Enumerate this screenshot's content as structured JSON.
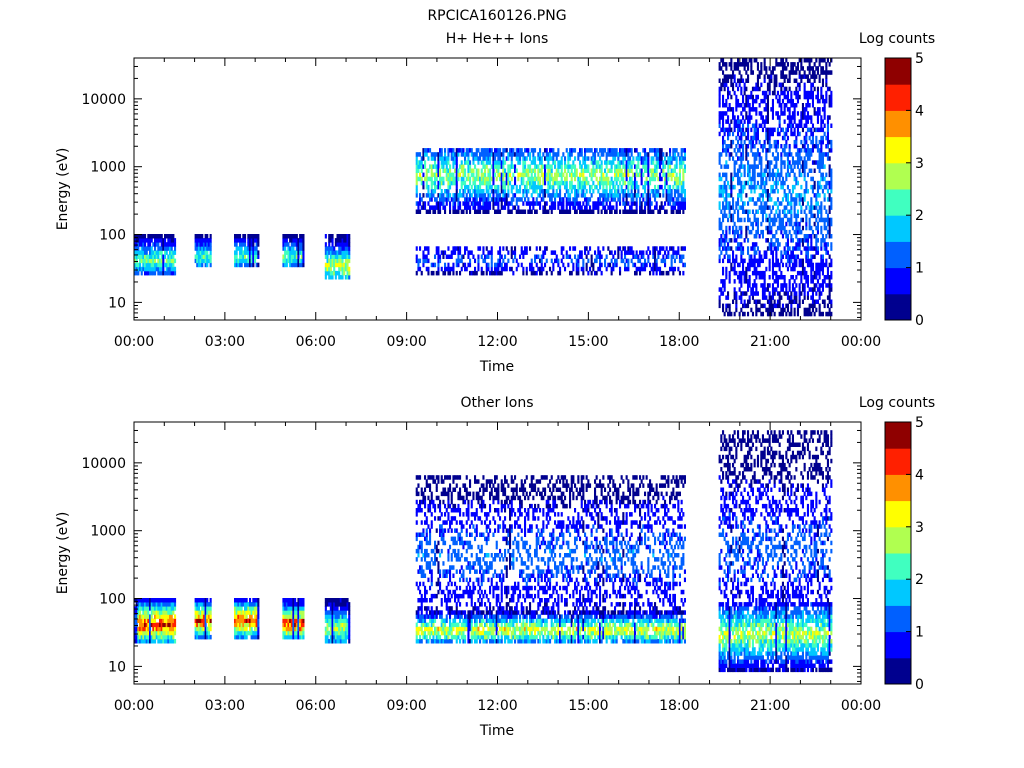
{
  "page_title": "RPCICA160126.PNG",
  "colors": {
    "colormap": [
      "#00008f",
      "#0000ff",
      "#0060ff",
      "#00c8ff",
      "#40ffc0",
      "#b0ff50",
      "#ffff00",
      "#ff9000",
      "#ff2000",
      "#8f0000"
    ],
    "axis": "#000000"
  },
  "chart_data": [
    {
      "type": "heatmap",
      "title": "H+ He++ Ions",
      "xlabel": "Time",
      "ylabel": "Energy (eV)",
      "xlim_hours": [
        0,
        24
      ],
      "x_ticks": [
        "00:00",
        "03:00",
        "06:00",
        "09:00",
        "12:00",
        "15:00",
        "18:00",
        "21:00",
        "00:00"
      ],
      "y_scale": "log",
      "ylim": [
        5.5,
        40000
      ],
      "y_ticks": [
        "10",
        "100",
        "1000",
        "10000"
      ],
      "colorbar": {
        "label": "Log counts",
        "range": [
          0,
          5
        ],
        "ticks": [
          "0",
          "1",
          "2",
          "3",
          "4",
          "5"
        ]
      },
      "regions": [
        {
          "t0": 0.0,
          "t1": 1.35,
          "e_lo": 25,
          "e_hi": 95,
          "peak_energy": 40,
          "peak_level": 2.6,
          "sparse": 0.1
        },
        {
          "t0": 2.0,
          "t1": 2.5,
          "e_lo": 30,
          "e_hi": 95,
          "peak_energy": 45,
          "peak_level": 2.4,
          "sparse": 0.1
        },
        {
          "t0": 3.3,
          "t1": 4.1,
          "e_lo": 30,
          "e_hi": 95,
          "peak_energy": 45,
          "peak_level": 2.5,
          "sparse": 0.1
        },
        {
          "t0": 4.9,
          "t1": 5.6,
          "e_lo": 30,
          "e_hi": 95,
          "peak_energy": 45,
          "peak_level": 2.5,
          "sparse": 0.1
        },
        {
          "t0": 6.3,
          "t1": 7.1,
          "e_lo": 22,
          "e_hi": 95,
          "peak_energy": 32,
          "peak_level": 3.2,
          "sparse": 0.1
        },
        {
          "t0": 9.3,
          "t1": 18.2,
          "e_lo": 180,
          "e_hi": 1800,
          "peak_energy": 700,
          "peak_level": 2.8,
          "sparse": 0.35
        },
        {
          "t0": 9.3,
          "t1": 18.2,
          "e_lo": 25,
          "e_hi": 60,
          "peak_energy": 40,
          "peak_level": 1.3,
          "sparse": 0.55
        },
        {
          "t0": 19.3,
          "t1": 23.0,
          "e_lo": 6,
          "e_hi": 38000,
          "peak_energy": 400,
          "peak_level": 1.6,
          "sparse": 0.5
        }
      ]
    },
    {
      "type": "heatmap",
      "title": "Other Ions",
      "xlabel": "Time",
      "ylabel": "Energy (eV)",
      "xlim_hours": [
        0,
        24
      ],
      "x_ticks": [
        "00:00",
        "03:00",
        "06:00",
        "09:00",
        "12:00",
        "15:00",
        "18:00",
        "21:00",
        "00:00"
      ],
      "y_scale": "log",
      "ylim": [
        5.5,
        40000
      ],
      "y_ticks": [
        "10",
        "100",
        "1000",
        "10000"
      ],
      "colorbar": {
        "label": "Log counts",
        "range": [
          0,
          5
        ],
        "ticks": [
          "0",
          "1",
          "2",
          "3",
          "4",
          "5"
        ]
      },
      "regions": [
        {
          "t0": 0.0,
          "t1": 1.35,
          "e_lo": 20,
          "e_hi": 95,
          "peak_energy": 40,
          "peak_level": 4.6,
          "sparse": 0.05
        },
        {
          "t0": 2.0,
          "t1": 2.5,
          "e_lo": 25,
          "e_hi": 95,
          "peak_energy": 45,
          "peak_level": 4.5,
          "sparse": 0.05
        },
        {
          "t0": 3.3,
          "t1": 4.1,
          "e_lo": 25,
          "e_hi": 95,
          "peak_energy": 45,
          "peak_level": 4.5,
          "sparse": 0.05
        },
        {
          "t0": 4.9,
          "t1": 5.6,
          "e_lo": 25,
          "e_hi": 95,
          "peak_energy": 40,
          "peak_level": 4.5,
          "sparse": 0.05
        },
        {
          "t0": 6.3,
          "t1": 7.1,
          "e_lo": 22,
          "e_hi": 95,
          "peak_energy": 35,
          "peak_level": 3.0,
          "sparse": 0.1
        },
        {
          "t0": 9.3,
          "t1": 18.2,
          "e_lo": 22,
          "e_hi": 60,
          "peak_energy": 32,
          "peak_level": 3.3,
          "sparse": 0.2
        },
        {
          "t0": 9.3,
          "t1": 18.2,
          "e_lo": 60,
          "e_hi": 6000,
          "peak_energy": 400,
          "peak_level": 1.4,
          "sparse": 0.6
        },
        {
          "t0": 19.3,
          "t1": 23.0,
          "e_lo": 8,
          "e_hi": 80,
          "peak_energy": 28,
          "peak_level": 3.0,
          "sparse": 0.2
        },
        {
          "t0": 19.3,
          "t1": 23.0,
          "e_lo": 80,
          "e_hi": 30000,
          "peak_energy": 500,
          "peak_level": 1.3,
          "sparse": 0.6
        }
      ]
    }
  ]
}
